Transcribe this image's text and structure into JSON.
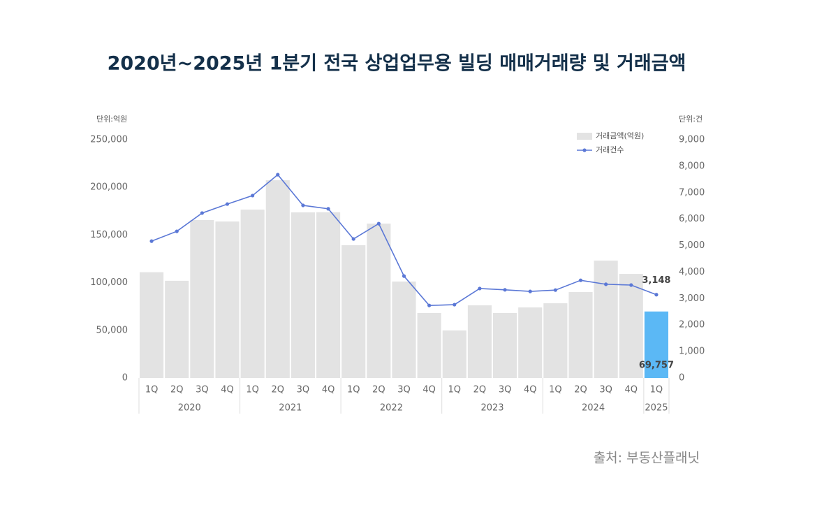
{
  "chart_data": {
    "type": "bar-line",
    "title": "2020년~2025년 1분기 전국 상업업무용 빌딩 매매거래량 및 거래금액",
    "y_unit": "단위:억원",
    "y2_unit": "단위:건",
    "source": "출처: 부동산플래닛",
    "groups": [
      {
        "label": "2020",
        "categories": [
          "1Q",
          "2Q",
          "3Q",
          "4Q"
        ]
      },
      {
        "label": "2021",
        "categories": [
          "1Q",
          "2Q",
          "3Q",
          "4Q"
        ]
      },
      {
        "label": "2022",
        "categories": [
          "1Q",
          "2Q",
          "3Q",
          "4Q"
        ]
      },
      {
        "label": "2023",
        "categories": [
          "1Q",
          "2Q",
          "3Q",
          "4Q"
        ]
      },
      {
        "label": "2024",
        "categories": [
          "1Q",
          "2Q",
          "3Q",
          "4Q"
        ]
      },
      {
        "label": "2025",
        "categories": [
          "1Q"
        ]
      }
    ],
    "series": [
      {
        "name": "거래금액(억원)",
        "type": "bar",
        "color": "#e3e3e3",
        "colors": [
          "#e3e3e3",
          "#e3e3e3",
          "#e3e3e3",
          "#e3e3e3",
          "#e3e3e3",
          "#e3e3e3",
          "#e3e3e3",
          "#e3e3e3",
          "#e3e3e3",
          "#e3e3e3",
          "#e3e3e3",
          "#e3e3e3",
          "#e3e3e3",
          "#e3e3e3",
          "#e3e3e3",
          "#e3e3e3",
          "#e3e3e3",
          "#e3e3e3",
          "#e3e3e3",
          "#e3e3e3",
          "#5bb8f5"
        ],
        "values": [
          111000,
          102000,
          165700,
          164200,
          176700,
          207500,
          173800,
          174000,
          139300,
          162000,
          101200,
          68200,
          49900,
          76200,
          68200,
          74000,
          78400,
          90200,
          123200,
          109200,
          69757
        ],
        "value_labels": [
          null,
          null,
          null,
          null,
          null,
          null,
          null,
          null,
          null,
          null,
          null,
          null,
          null,
          null,
          null,
          null,
          null,
          null,
          null,
          null,
          "69,757"
        ]
      },
      {
        "name": "거래건수",
        "type": "line",
        "axis": "y2",
        "color": "#5b78d6",
        "values": [
          5170,
          5540,
          6230,
          6570,
          6890,
          7680,
          6520,
          6390,
          5250,
          5830,
          3850,
          2740,
          2770,
          3380,
          3330,
          3270,
          3320,
          3690,
          3540,
          3510,
          3148
        ],
        "value_labels": [
          null,
          null,
          null,
          null,
          null,
          null,
          null,
          null,
          null,
          null,
          null,
          null,
          null,
          null,
          null,
          null,
          null,
          null,
          null,
          null,
          "3,148"
        ]
      }
    ],
    "ylim": [
      0,
      250000
    ],
    "yticks": [
      0,
      {
        "value": 50000,
        "label": "50,000"
      },
      {
        "value": 100000,
        "label": "100,000"
      },
      {
        "value": 150000,
        "label": "150,000"
      },
      {
        "value": 200000,
        "label": "200,000"
      },
      {
        "value": 250000,
        "label": "250,000"
      }
    ],
    "y2lim": [
      0,
      9000
    ],
    "y2ticks": [
      0,
      {
        "value": 1000,
        "label": "1,000"
      },
      {
        "value": 2000,
        "label": "2,000"
      },
      {
        "value": 3000,
        "label": "3,000"
      },
      {
        "value": 4000,
        "label": "4,000"
      },
      {
        "value": 5000,
        "label": "5,000"
      },
      {
        "value": 6000,
        "label": "6,000"
      },
      {
        "value": 7000,
        "label": "7,000"
      },
      {
        "value": 8000,
        "label": "8,000"
      },
      {
        "value": 9000,
        "label": "9,000"
      }
    ]
  }
}
